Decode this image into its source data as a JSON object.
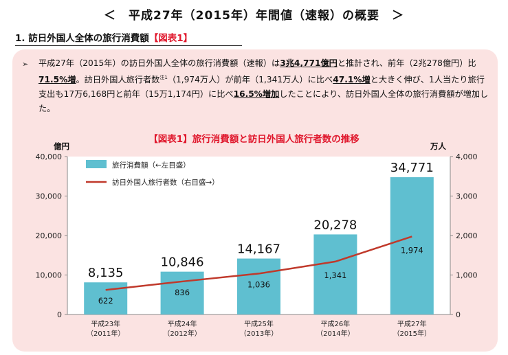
{
  "page": {
    "title": "＜　平成27年（2015年）年間値（速報）の概要　＞",
    "section_number": "1. ",
    "section_label": "訪日外国人全体の旅行消費額",
    "section_ref": "【図表1】"
  },
  "summary": {
    "bullet": "➢",
    "t1": "平成27年（2015年）の訪日外国人全体の旅行消費額（速報）は",
    "e1": "3兆4,771億円",
    "t2": "と推計され、前年（2兆278億円）比",
    "e2": "71.5%増",
    "t3": "。訪日外国人旅行者数",
    "note": "注1",
    "t4": "（1,974万人）が前年（1,341万人）に比べ",
    "e3": "47.1%増",
    "t5": "と大きく伸び、1人当たり旅行支出も17万6,168円と前年（15万1,174円）に比べ",
    "e4": "16.5%増加",
    "t6": "したことにより、訪日外国人全体の旅行消費額が増加した。"
  },
  "chart_data": {
    "type": "bar",
    "title": "【図表1】旅行消費額と訪日外国人旅行者数の推移",
    "left_unit": "億円",
    "right_unit": "万人",
    "categories": [
      {
        "line1": "平成23年",
        "line2": "（2011年）"
      },
      {
        "line1": "平成24年",
        "line2": "（2012年）"
      },
      {
        "line1": "平成25年",
        "line2": "（2013年）"
      },
      {
        "line1": "平成26年",
        "line2": "（2014年）"
      },
      {
        "line1": "平成27年",
        "line2": "（2015年）"
      }
    ],
    "series": [
      {
        "name": "旅行消費額（←左目盛）",
        "type": "bar",
        "axis": "left",
        "values": [
          8135,
          10846,
          14167,
          20278,
          34771
        ],
        "labels": [
          "8,135",
          "10,846",
          "14,167",
          "20,278",
          "34,771"
        ],
        "color": "#5fbfd0"
      },
      {
        "name": "訪日外国人旅行者数（右目盛→）",
        "type": "line",
        "axis": "right",
        "values": [
          622,
          836,
          1036,
          1341,
          1974
        ],
        "labels": [
          "622",
          "836",
          "1,036",
          "1,341",
          "1,974"
        ],
        "color": "#c0392b"
      }
    ],
    "left_axis": {
      "min": 0,
      "max": 40000,
      "ticks": [
        "0",
        "10,000",
        "20,000",
        "30,000",
        "40,000"
      ]
    },
    "right_axis": {
      "min": 0,
      "max": 4000,
      "ticks": [
        "0",
        "1,000",
        "2,000",
        "3,000",
        "4,000"
      ]
    },
    "grid": false,
    "legend_position": "top-left"
  },
  "colors": {
    "panel": "#fbe3e2",
    "accent_red": "#e0182d",
    "bar": "#5fbfd0",
    "line": "#c0392b"
  }
}
